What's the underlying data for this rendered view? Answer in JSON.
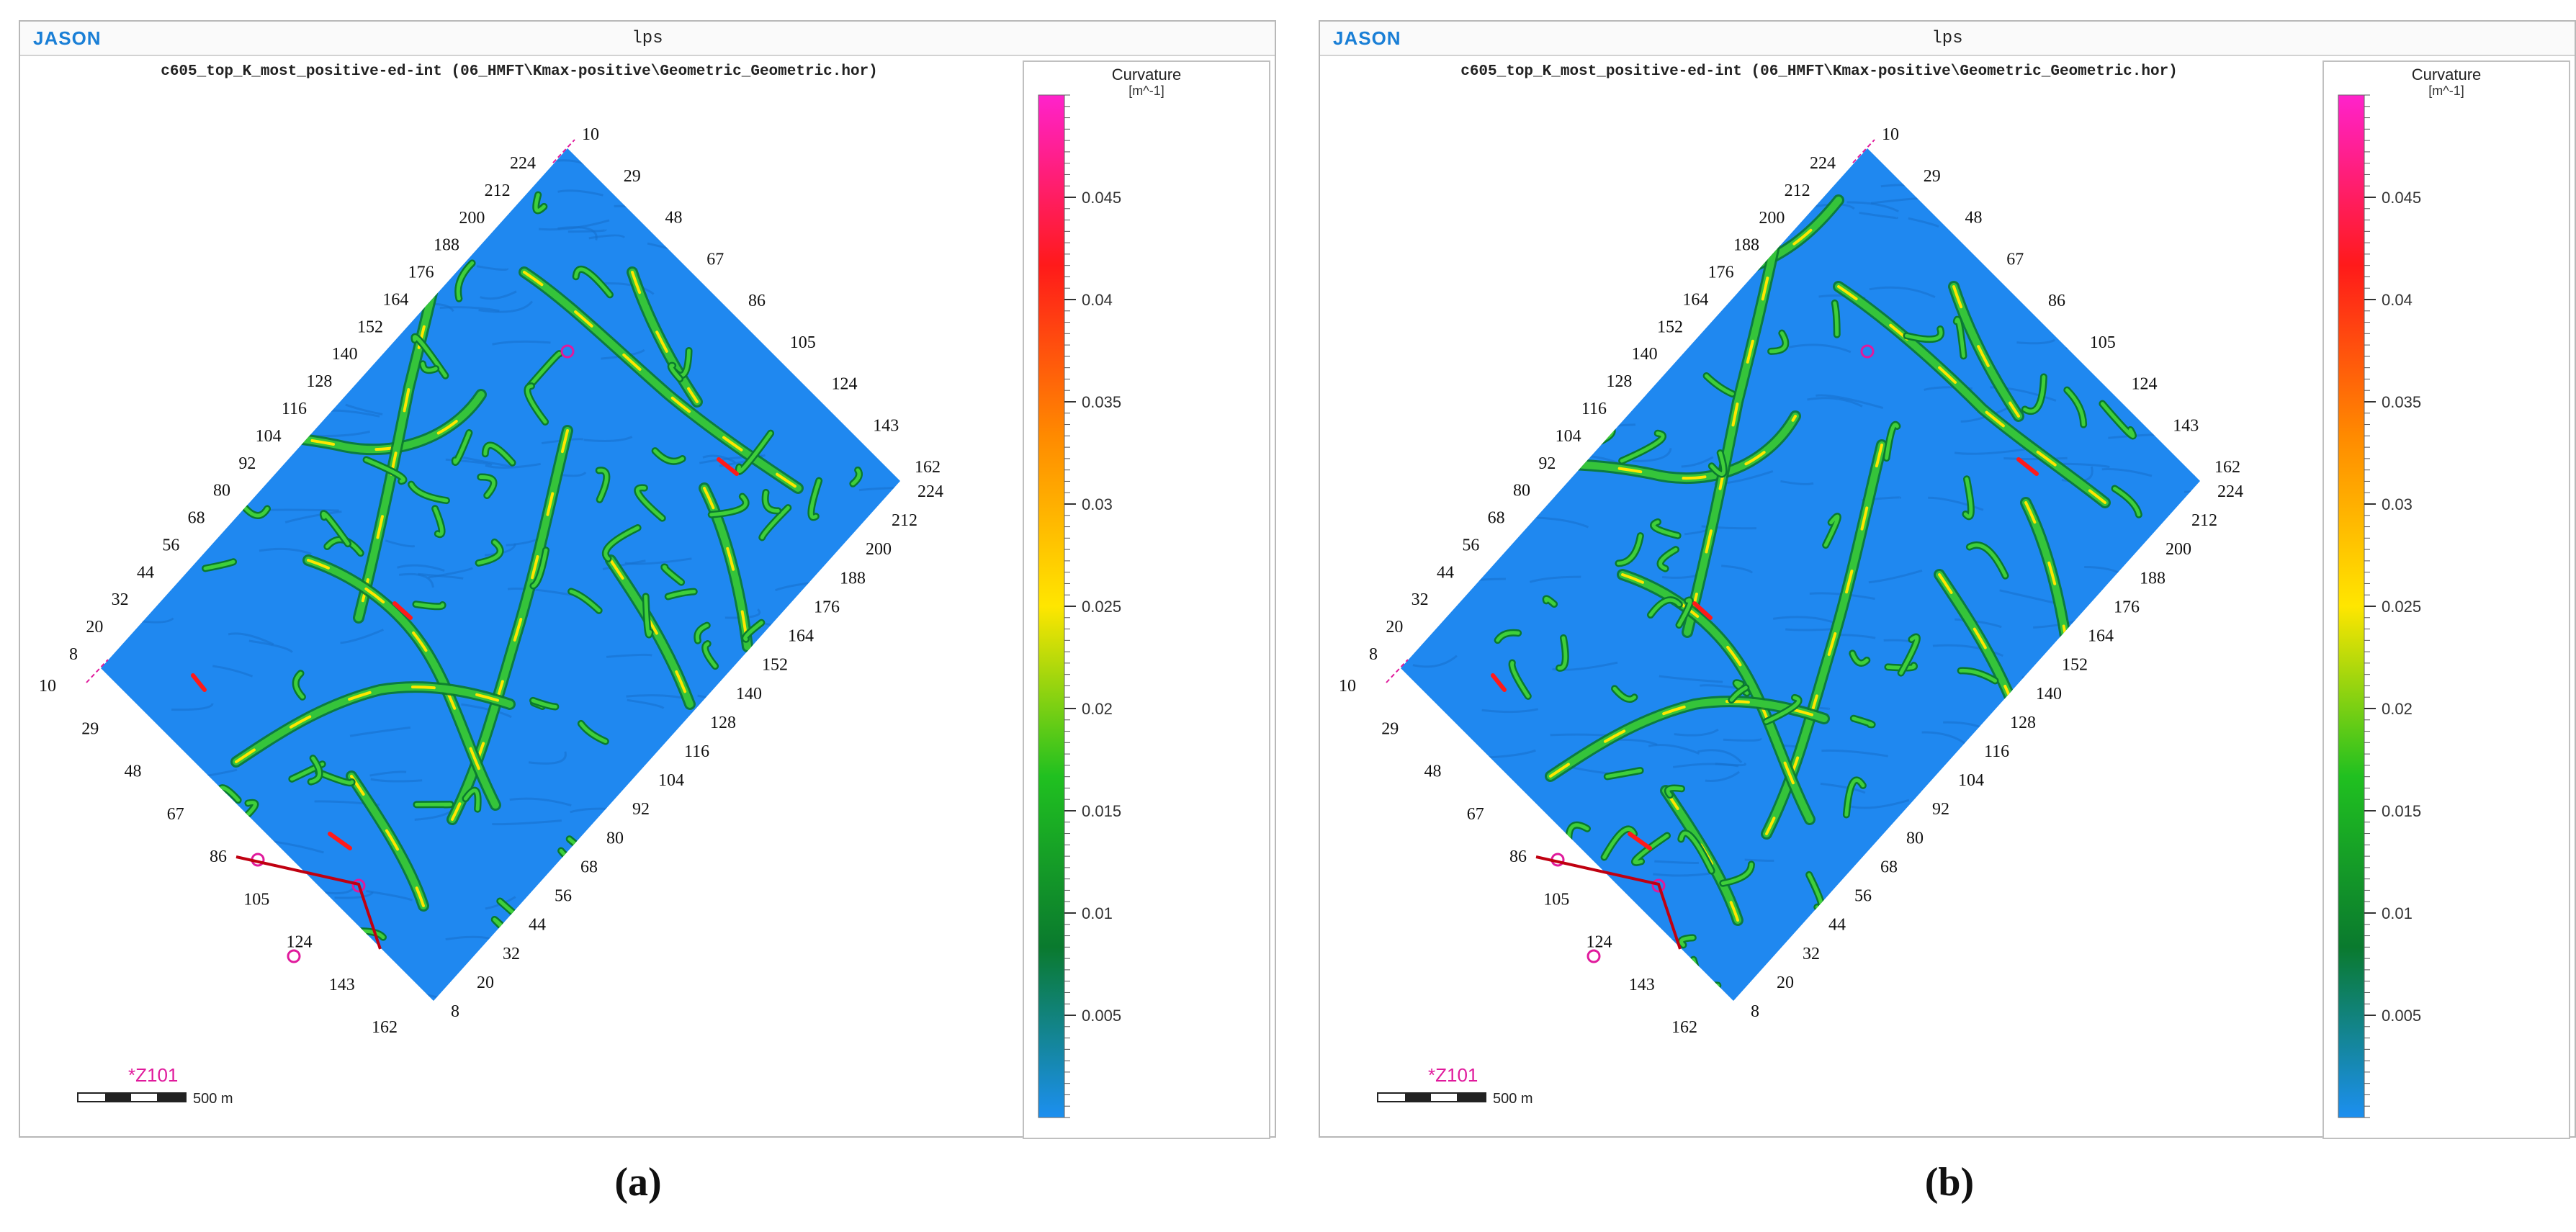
{
  "panels": [
    {
      "id": "a",
      "brand": "JASON",
      "window_title": "lps",
      "map_caption": "c605_top_K_most_positive-ed-int (06_HMFT\\Kmax-positive\\Geometric_Geometric.hor)",
      "colorbar": {
        "title": "Curvature",
        "unit": "[m^-1]",
        "ticks": [
          "0.045",
          "0.04",
          "0.035",
          "0.03",
          "0.025",
          "0.02",
          "0.015",
          "0.01",
          "0.005"
        ]
      },
      "axis_labels": {
        "top_left": [
          "224",
          "212",
          "200",
          "188",
          "176",
          "164",
          "152",
          "140",
          "128",
          "116",
          "104",
          "92",
          "80",
          "68",
          "56",
          "44",
          "32",
          "20",
          "8"
        ],
        "top_right": [
          "10",
          "29",
          "48",
          "67",
          "86",
          "105",
          "124",
          "143",
          "162"
        ],
        "bottom_left": [
          "10",
          "29",
          "48",
          "67",
          "86",
          "105",
          "124",
          "143",
          "162"
        ],
        "bottom_right": [
          "224",
          "212",
          "200",
          "188",
          "176",
          "164",
          "152",
          "140",
          "128",
          "116",
          "104",
          "92",
          "80",
          "68",
          "56",
          "44",
          "32",
          "20",
          "8"
        ]
      },
      "well_label": "Z101",
      "scale_label": "500 m",
      "panel_label": "(a)"
    },
    {
      "id": "b",
      "brand": "JASON",
      "window_title": "lps",
      "map_caption": "c605_top_K_most_positive-ed-int (06_HMFT\\Kmax-positive\\Geometric_Geometric.hor)",
      "colorbar": {
        "title": "Curvature",
        "unit": "[m^-1]",
        "ticks": [
          "0.045",
          "0.04",
          "0.035",
          "0.03",
          "0.025",
          "0.02",
          "0.015",
          "0.01",
          "0.005"
        ]
      },
      "axis_labels": {
        "top_left": [
          "224",
          "212",
          "200",
          "188",
          "176",
          "164",
          "152",
          "140",
          "128",
          "116",
          "104",
          "92",
          "80",
          "68",
          "56",
          "44",
          "32",
          "20",
          "8"
        ],
        "top_right": [
          "10",
          "29",
          "48",
          "67",
          "86",
          "105",
          "124",
          "143",
          "162"
        ],
        "bottom_left": [
          "10",
          "29",
          "48",
          "67",
          "86",
          "105",
          "124",
          "143",
          "162"
        ],
        "bottom_right": [
          "224",
          "212",
          "200",
          "188",
          "176",
          "164",
          "152",
          "140",
          "128",
          "116",
          "104",
          "92",
          "80",
          "68",
          "56",
          "44",
          "32",
          "20",
          "8"
        ]
      },
      "well_label": "Z101",
      "scale_label": "500 m",
      "panel_label": "(b)"
    }
  ],
  "colors": {
    "map_background": "#1f88f0",
    "brand": "#1a7fd6",
    "well_marker": "#e01a9c",
    "colorbar_stops": [
      "#ff22cc",
      "#ff1a1a",
      "#ff8a00",
      "#ffe600",
      "#20c020",
      "#0a7a2e",
      "#1c8ff0"
    ]
  }
}
